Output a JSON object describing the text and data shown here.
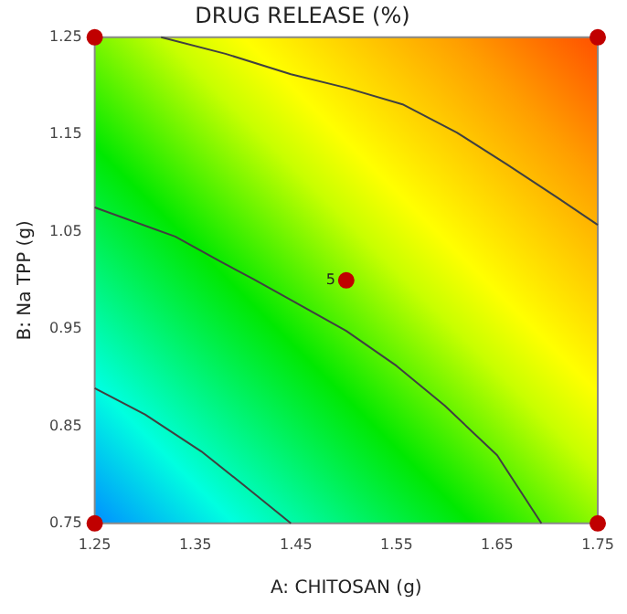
{
  "chart_data": {
    "type": "line",
    "title": "DRUG RELEASE (%)",
    "xlabel": "A: CHITOSAN (g)",
    "ylabel": "B: Na TPP (g)",
    "xlim": [
      1.25,
      1.75
    ],
    "ylim": [
      0.75,
      1.25
    ],
    "xticks": [
      1.25,
      1.35,
      1.45,
      1.55,
      1.65,
      1.75
    ],
    "yticks": [
      0.75,
      0.85,
      0.95,
      1.05,
      1.15,
      1.25
    ],
    "legend": false,
    "marker": "none",
    "line_style": "solid",
    "series": [
      {
        "color": "#404040",
        "x": [
          1.316,
          1.38,
          1.445,
          1.5,
          1.556,
          1.61,
          1.66,
          1.71,
          1.75
        ],
        "values": [
          1.25,
          1.233,
          1.212,
          1.198,
          1.181,
          1.152,
          1.119,
          1.085,
          1.057
        ]
      },
      {
        "color": "#404040",
        "x": [
          1.25,
          1.33,
          1.374,
          1.408,
          1.45,
          1.5,
          1.55,
          1.598,
          1.65,
          1.694
        ],
        "values": [
          1.075,
          1.045,
          1.02,
          1.001,
          0.977,
          0.948,
          0.912,
          0.871,
          0.82,
          0.75
        ]
      },
      {
        "color": "#404040",
        "x": [
          1.25,
          1.3,
          1.356,
          1.401,
          1.445
        ],
        "values": [
          0.889,
          0.862,
          0.824,
          0.787,
          0.75
        ]
      },
      {
        "type": "scatter",
        "color": "#c00000",
        "marker": "circle",
        "x": [
          1.25,
          1.75,
          1.25,
          1.75,
          1.5
        ],
        "values": [
          0.75,
          0.75,
          1.25,
          1.25,
          1.0
        ]
      }
    ],
    "annotations": [
      {
        "text": "5",
        "x": 1.5,
        "y": 1.0
      }
    ]
  }
}
